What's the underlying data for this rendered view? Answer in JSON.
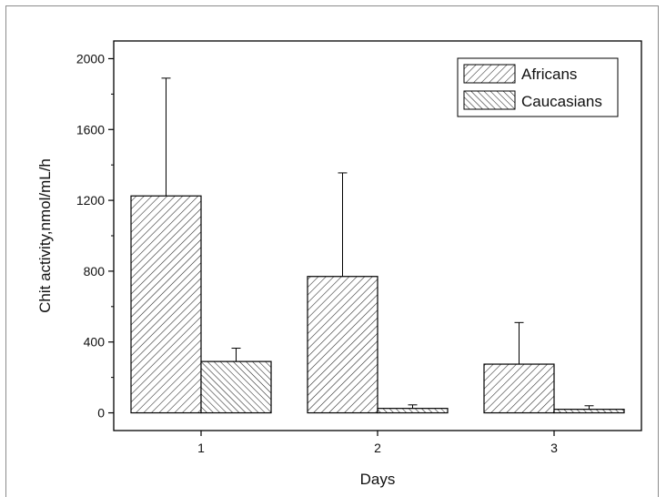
{
  "chart_data": {
    "type": "bar",
    "title": "",
    "xlabel": "Days",
    "ylabel": "Chit activity,nmol/mL/h",
    "categories": [
      "1",
      "2",
      "3"
    ],
    "ylim": [
      -100,
      2100
    ],
    "yticks": [
      0,
      400,
      800,
      1200,
      1600,
      2000
    ],
    "yticks_labels": [
      "0",
      "400",
      "800",
      "1200",
      "1600",
      "2000"
    ],
    "series": [
      {
        "name": "Africans",
        "values": [
          1225,
          770,
          275
        ],
        "errors": [
          665,
          585,
          235
        ],
        "hatch": "forward-diagonal"
      },
      {
        "name": "Caucasians",
        "values": [
          290,
          25,
          20
        ],
        "errors": [
          75,
          20,
          20
        ],
        "hatch": "backward-diagonal"
      }
    ],
    "legend_position": "top-right",
    "grid": false,
    "error_bars": "upper only"
  }
}
